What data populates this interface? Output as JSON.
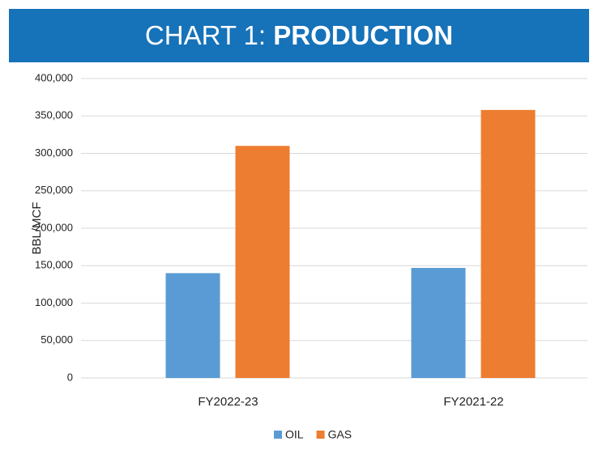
{
  "chart_data": {
    "type": "bar",
    "title": [
      "CHART 1:",
      "PRODUCTION"
    ],
    "ylabel": "BBL/MCF",
    "categories": [
      "FY2022-23",
      "FY2021-22"
    ],
    "series": [
      {
        "name": "OIL",
        "color": "#5b9bd5",
        "values": [
          140000,
          147000
        ]
      },
      {
        "name": "GAS",
        "color": "#ed7d31",
        "values": [
          310000,
          358000
        ]
      }
    ],
    "ylim": [
      0,
      400000
    ],
    "yticks": [
      0,
      {
        "value": 50000,
        "label": "50,000"
      },
      {
        "value": 100000,
        "label": "100,000"
      },
      {
        "value": 150000,
        "label": "150,000"
      },
      {
        "value": 200000,
        "label": "200,000"
      },
      {
        "value": 250000,
        "label": "250,000"
      },
      {
        "value": 300000,
        "label": "300,000"
      },
      {
        "value": 350000,
        "label": "350,000"
      },
      {
        "value": 400000,
        "label": "400,000"
      }
    ],
    "grid": true,
    "legend": "bottom",
    "header_color": "#1672b9"
  }
}
